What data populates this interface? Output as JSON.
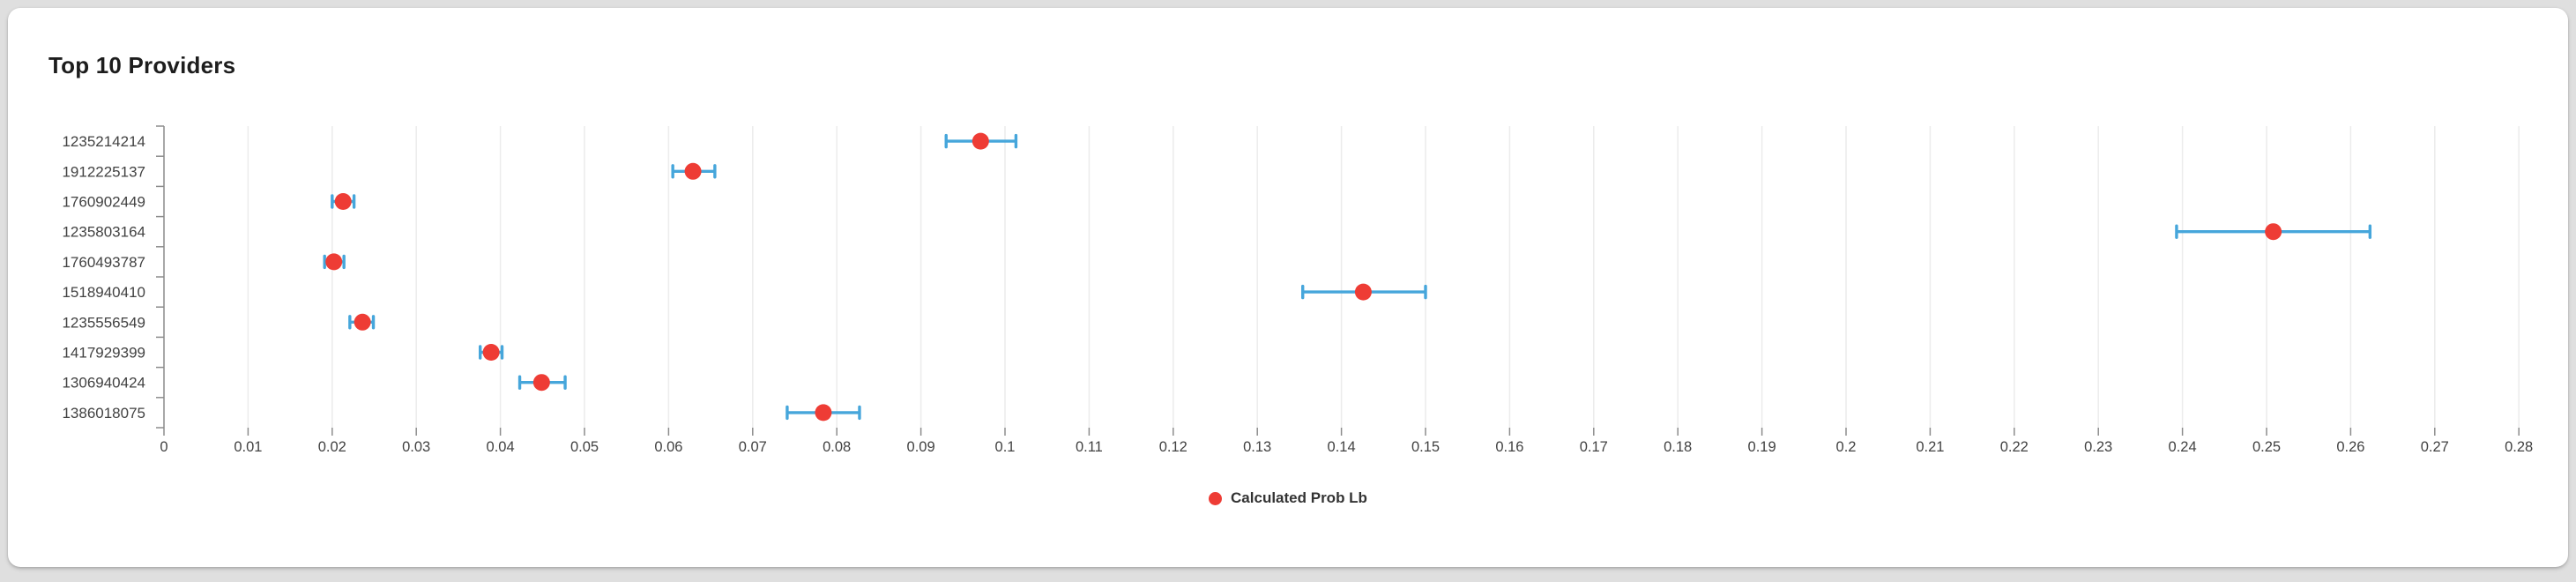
{
  "card": {
    "title": "Top 10 Providers"
  },
  "legend": {
    "label": "Calculated Prob Lb"
  },
  "colors": {
    "point": "#ee3c35",
    "error_bar": "#46a6db",
    "grid": "#ececec",
    "axis": "#8c8c8c",
    "tick_text": "#424242",
    "card_bg": "#ffffff",
    "page_bg": "#dfdfdf"
  },
  "chart_data": {
    "type": "scatter",
    "orientation": "horizontal",
    "title": "Top 10 Providers",
    "series": [
      {
        "name": "Calculated Prob Lb",
        "values": [
          0.0971,
          0.0629,
          0.0213,
          0.2508,
          0.0202,
          0.1426,
          0.0236,
          0.0389,
          0.0449,
          0.0784
        ],
        "error_low": [
          0.093,
          0.0605,
          0.02,
          0.2393,
          0.0191,
          0.1354,
          0.0221,
          0.0376,
          0.0423,
          0.0741
        ],
        "error_high": [
          0.1013,
          0.0655,
          0.0226,
          0.2623,
          0.0214,
          0.15,
          0.0249,
          0.0402,
          0.0477,
          0.0827
        ]
      }
    ],
    "categories": [
      "1235214214",
      "1912225137",
      "1760902449",
      "1235803164",
      "1760493787",
      "1518940410",
      "1235556549",
      "1417929399",
      "1306940424",
      "1386018075"
    ],
    "xlabel": "",
    "ylabel": "",
    "xlim": [
      0,
      0.28
    ],
    "x_tick_step": 0.01,
    "x_tick_labels": [
      "0",
      "0.01",
      "0.02",
      "0.03",
      "0.04",
      "0.05",
      "0.06",
      "0.07",
      "0.08",
      "0.09",
      "0.1",
      "0.11",
      "0.12",
      "0.13",
      "0.14",
      "0.15",
      "0.16",
      "0.17",
      "0.18",
      "0.19",
      "0.2",
      "0.21",
      "0.22",
      "0.23",
      "0.24",
      "0.25",
      "0.26",
      "0.27",
      "0.28"
    ],
    "grid": true,
    "legend_position": "bottom"
  }
}
